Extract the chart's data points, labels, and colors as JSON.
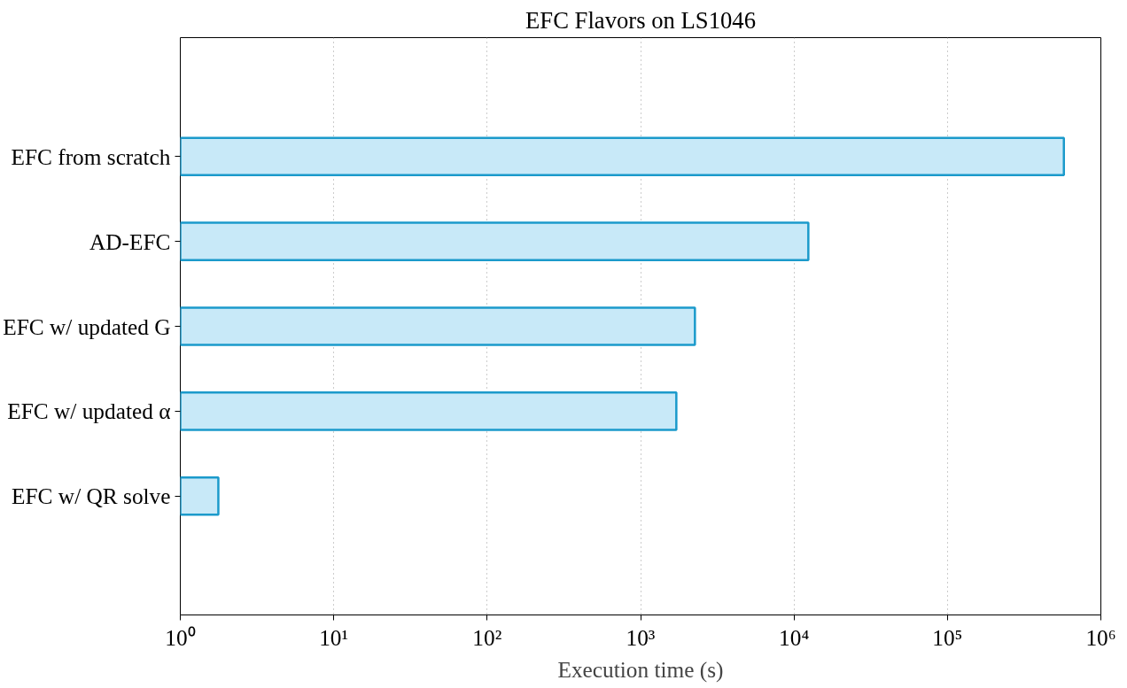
{
  "chart_data": {
    "type": "bar",
    "orientation": "horizontal",
    "title": "EFC Flavors on LS1046",
    "xlabel": "Execution time (s)",
    "categories": [
      "EFC from scratch",
      "AD-EFC",
      "EFC w/ updated G",
      "EFC w/ updated α",
      "EFC w/ QR solve"
    ],
    "values": [
      574000,
      12400,
      2260,
      1710,
      1.77
    ],
    "color": "#c8e9f8",
    "log": "x",
    "xlim": [
      1,
      1000000
    ],
    "xticks": [
      {
        "value": 1,
        "label": "10⁰"
      },
      {
        "value": 10,
        "label": "10¹"
      },
      {
        "value": 100,
        "label": "10²"
      },
      {
        "value": 1000,
        "label": "10³"
      },
      {
        "value": 10000,
        "label": "10⁴"
      },
      {
        "value": 100000,
        "label": "10⁵"
      },
      {
        "value": 1000000,
        "label": "10⁶"
      }
    ],
    "grid": "x"
  }
}
